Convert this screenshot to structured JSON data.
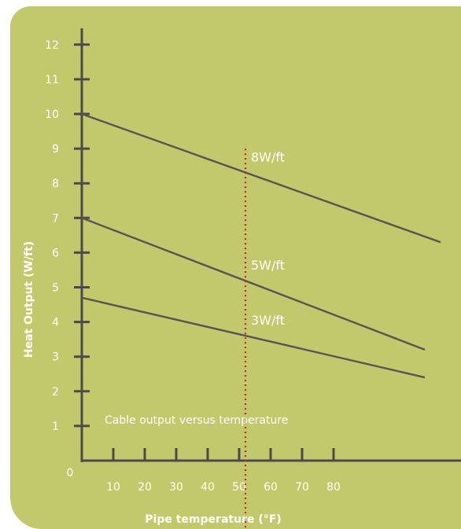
{
  "chart_data": {
    "type": "line",
    "title": "",
    "annotation": "Cable output versus temperature",
    "xlabel": "Pipe temperature (°F)",
    "ylabel": "Heat Output (W/ft)",
    "origin_label": "0",
    "xticks": [
      10,
      20,
      30,
      40,
      50,
      60,
      70,
      80
    ],
    "yticks": [
      1,
      2,
      3,
      4,
      5,
      6,
      7,
      8,
      9,
      10,
      11,
      12
    ],
    "xlim": [
      0,
      114
    ],
    "ylim": [
      0,
      12.8
    ],
    "grid": false,
    "series": [
      {
        "name": "8W/ft",
        "x": [
          0,
          114
        ],
        "y": [
          10,
          6.3
        ]
      },
      {
        "name": "5W/ft",
        "x": [
          0,
          109
        ],
        "y": [
          7,
          3.2
        ]
      },
      {
        "name": "3W/ft",
        "x": [
          0,
          109
        ],
        "y": [
          4.7,
          2.4
        ]
      }
    ],
    "reference_line": {
      "x": 52,
      "style": "dotted",
      "color": "#d62020"
    },
    "colors": {
      "panel": "#c2c96d",
      "axis": "#4a4a4a",
      "lines": "#555555",
      "text": "#ffffff"
    }
  }
}
